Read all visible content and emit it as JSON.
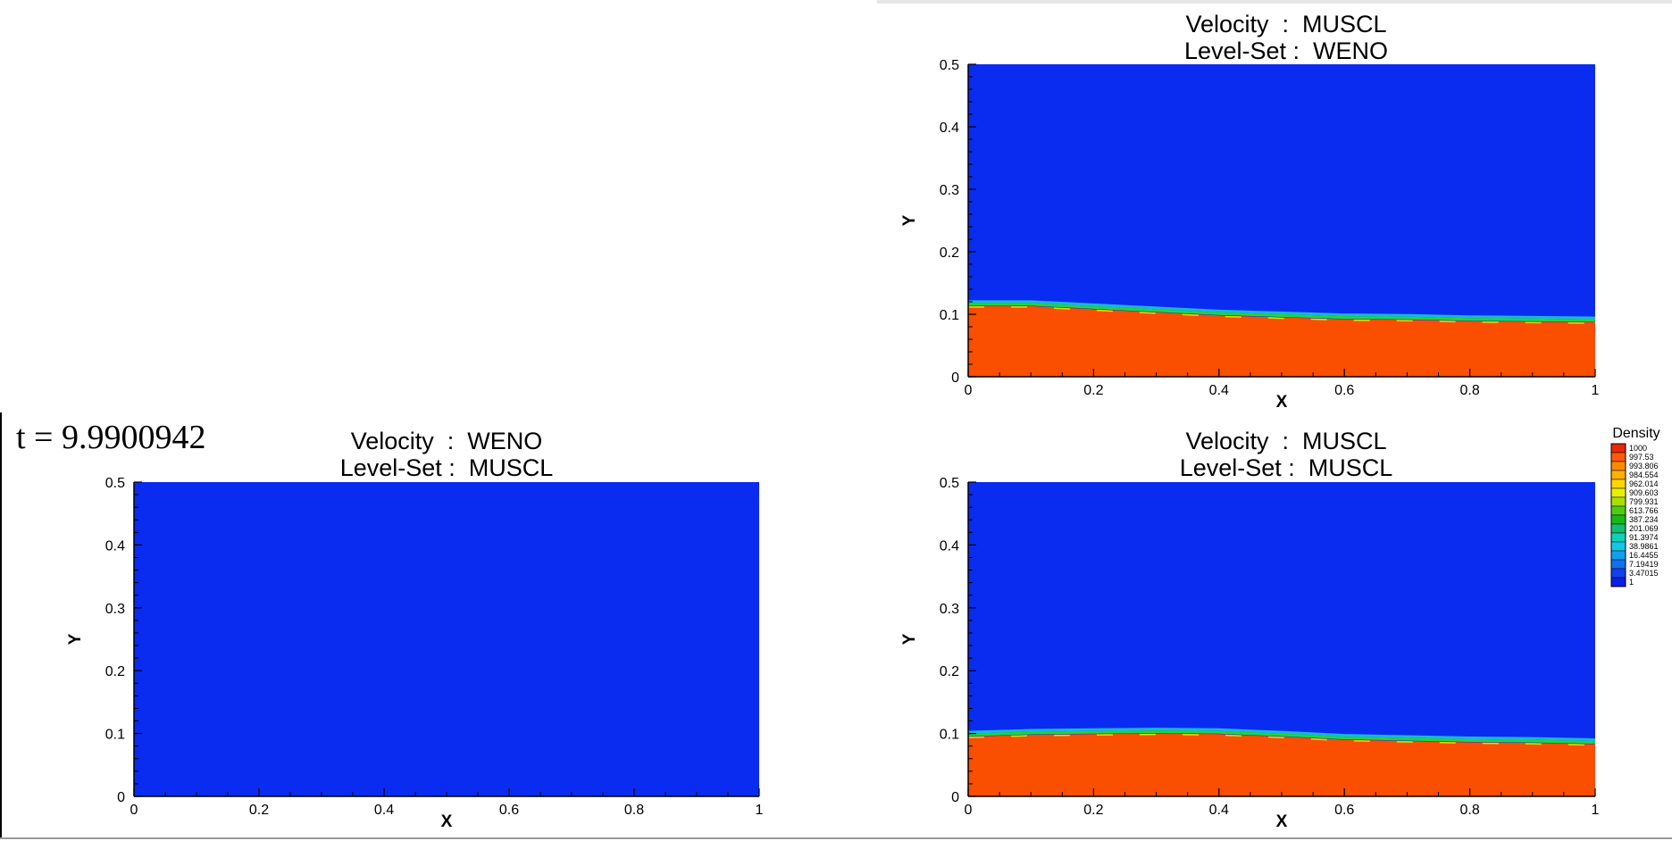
{
  "time_label": "t = 9.9900942",
  "colors": {
    "gas": "#0a2cf0",
    "liquid": "#fa4e00",
    "interface_green": "#22d43a",
    "interface_cyan": "#18b8d8",
    "interface_yellow": "#d8e000"
  },
  "legend": {
    "title": "Density",
    "levels": [
      "1000",
      "997.53",
      "993.806",
      "984.554",
      "962.014",
      "909.603",
      "799.931",
      "613.766",
      "387.234",
      "201.069",
      "91.3974",
      "38.9861",
      "16.4455",
      "7.19419",
      "3.47015",
      "1"
    ],
    "colors": [
      "#e8280a",
      "#fa5a0a",
      "#ff8a00",
      "#ffb000",
      "#ffd800",
      "#e8f000",
      "#a8e000",
      "#50cc10",
      "#18b818",
      "#10c070",
      "#10d0b8",
      "#10c8e8",
      "#10a0f0",
      "#1070f0",
      "#1040f0",
      "#0a1ee8"
    ]
  },
  "chart_data": [
    {
      "type": "heatmap",
      "title_line1": "Velocity  :  MUSCL",
      "title_line2": "Level-Set :  WENO",
      "xlabel": "X",
      "ylabel": "Y",
      "xlim": [
        0,
        1
      ],
      "ylim": [
        0,
        0.5
      ],
      "xticks": [
        "0",
        "0.2",
        "0.4",
        "0.6",
        "0.8",
        "1"
      ],
      "yticks": [
        "0",
        "0.1",
        "0.2",
        "0.3",
        "0.4",
        "0.5"
      ],
      "interface_x": [
        0,
        0.1,
        0.2,
        0.3,
        0.4,
        0.5,
        0.6,
        0.7,
        0.8,
        0.9,
        1.0
      ],
      "interface_y": [
        0.113,
        0.113,
        0.108,
        0.103,
        0.098,
        0.095,
        0.092,
        0.091,
        0.089,
        0.088,
        0.087
      ]
    },
    {
      "type": "heatmap",
      "title_line1": "Velocity  :  WENO",
      "title_line2": "Level-Set :  MUSCL",
      "xlabel": "X",
      "ylabel": "Y",
      "xlim": [
        0,
        1
      ],
      "ylim": [
        0,
        0.5
      ],
      "xticks": [
        "0",
        "0.2",
        "0.4",
        "0.6",
        "0.8",
        "1"
      ],
      "yticks": [
        "0",
        "0.1",
        "0.2",
        "0.3",
        "0.4",
        "0.5"
      ],
      "interface_x": [],
      "interface_y": []
    },
    {
      "type": "heatmap",
      "title_line1": "Velocity  :  MUSCL",
      "title_line2": "Level-Set :  MUSCL",
      "xlabel": "X",
      "ylabel": "Y",
      "xlim": [
        0,
        1
      ],
      "ylim": [
        0,
        0.5
      ],
      "xticks": [
        "0",
        "0.2",
        "0.4",
        "0.6",
        "0.8",
        "1"
      ],
      "yticks": [
        "0",
        "0.1",
        "0.2",
        "0.3",
        "0.4",
        "0.5"
      ],
      "interface_x": [
        0,
        0.1,
        0.2,
        0.3,
        0.4,
        0.5,
        0.6,
        0.7,
        0.8,
        0.9,
        1.0
      ],
      "interface_y": [
        0.095,
        0.098,
        0.099,
        0.1,
        0.099,
        0.095,
        0.09,
        0.088,
        0.086,
        0.085,
        0.083
      ]
    }
  ]
}
